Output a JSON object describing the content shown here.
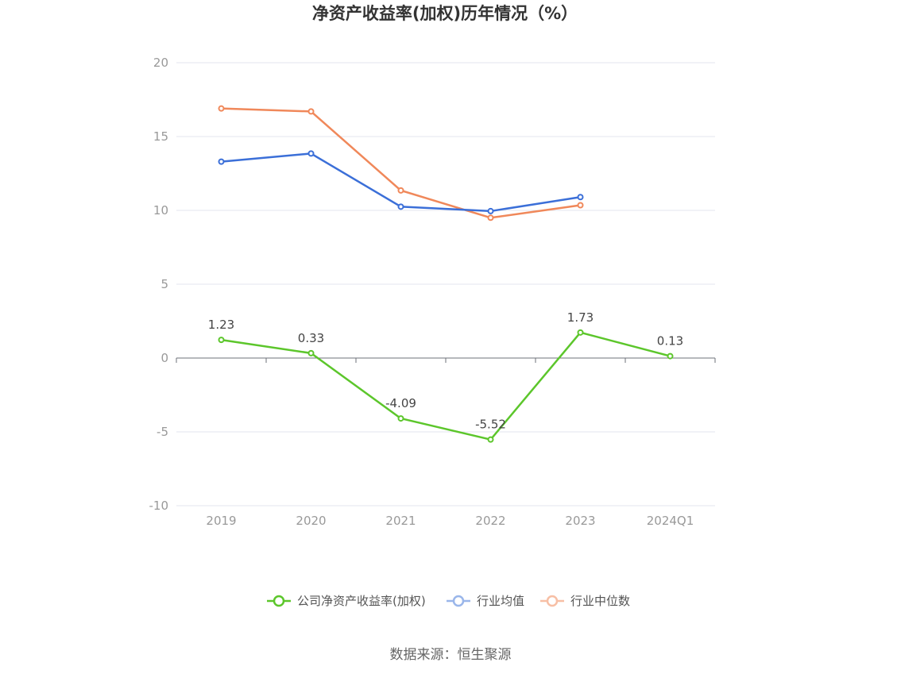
{
  "chart_data": {
    "type": "line",
    "title": "净资产收益率(加权)历年情况（%）",
    "categories": [
      "2019",
      "2020",
      "2021",
      "2022",
      "2023",
      "2024Q1"
    ],
    "ylim": [
      -10,
      20
    ],
    "yticks": [
      20,
      15,
      10,
      5,
      0,
      -5,
      -10
    ],
    "grid": true,
    "legend_position": "bottom",
    "series": [
      {
        "name": "公司净资产收益率(加权)",
        "color": "#5cc62b",
        "values": [
          1.23,
          0.33,
          -4.09,
          -5.52,
          1.73,
          0.13
        ],
        "labels": [
          "1.23",
          "0.33",
          "-4.09",
          "-5.52",
          "1.73",
          "0.13"
        ]
      },
      {
        "name": "行业均值",
        "color": "#3b6fd8",
        "legend_color": "#9ab6ea",
        "values": [
          13.3,
          13.85,
          10.25,
          9.95,
          10.9,
          null
        ]
      },
      {
        "name": "行业中位数",
        "color": "#f0885a",
        "legend_color": "#f7bfa5",
        "values": [
          16.9,
          16.7,
          11.35,
          9.5,
          10.35,
          null
        ]
      }
    ]
  },
  "source": "数据来源：恒生聚源"
}
